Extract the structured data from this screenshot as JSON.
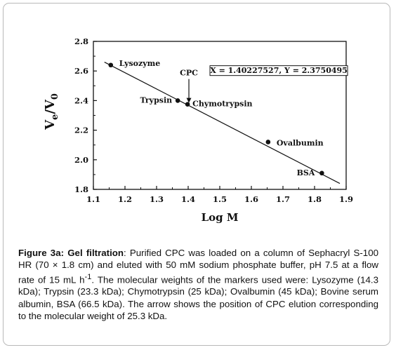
{
  "chart_data": {
    "type": "scatter",
    "xlabel": "Log M",
    "ylabel_main": "V",
    "ylabel_sub1": "e",
    "ylabel_mid": "/V",
    "ylabel_sub2": "0",
    "xlim": [
      1.1,
      1.9
    ],
    "ylim": [
      1.8,
      2.8
    ],
    "x_ticks": [
      "1.1",
      "1.2",
      "1.3",
      "1.4",
      "1.5",
      "1.6",
      "1.7",
      "1.8",
      "1.9"
    ],
    "y_ticks": [
      "1.8",
      "2.0",
      "2.2",
      "2.4",
      "2.6",
      "2.8"
    ],
    "points": [
      {
        "label": "Lysozyme",
        "x": 1.155,
        "y": 2.64
      },
      {
        "label": "Trypsin",
        "x": 1.367,
        "y": 2.4
      },
      {
        "label": "Chymotrypsin",
        "x": 1.398,
        "y": 2.375
      },
      {
        "label": "Ovalbumin",
        "x": 1.653,
        "y": 2.12
      },
      {
        "label": "BSA",
        "x": 1.823,
        "y": 1.91
      }
    ],
    "fit_line": {
      "x": [
        1.135,
        1.88
      ],
      "y": [
        2.66,
        1.84
      ]
    },
    "cpc": {
      "label": "CPC",
      "x": 1.40227527,
      "y": 2.3750495
    },
    "annotation": "X = 1.40227527, Y = 2.3750495"
  },
  "caption": {
    "bold_lead": "Figure 3a:",
    "bold_topic": "Gel filtration",
    "colon": ":",
    "text_before_sup": " Purified CPC was loaded on a column of Sephacryl S-100 HR (70 × 1.8 cm) and eluted with 50 mM sodium phosphate buffer, pH 7.5 at a flow rate of 15 mL h",
    "sup": "-1",
    "text_after_sup": ". The molecular weights of the markers used were: Lysozyme (14.3 kDa); Trypsin (23.3 kDa); Chymotrypsin (25 kDa); Ovalbumin (45 kDa); Bovine serum albumin, BSA (66.5 kDa). The arrow shows the position of CPC elution corresponding to the molecular weight of 25.3 kDa."
  }
}
